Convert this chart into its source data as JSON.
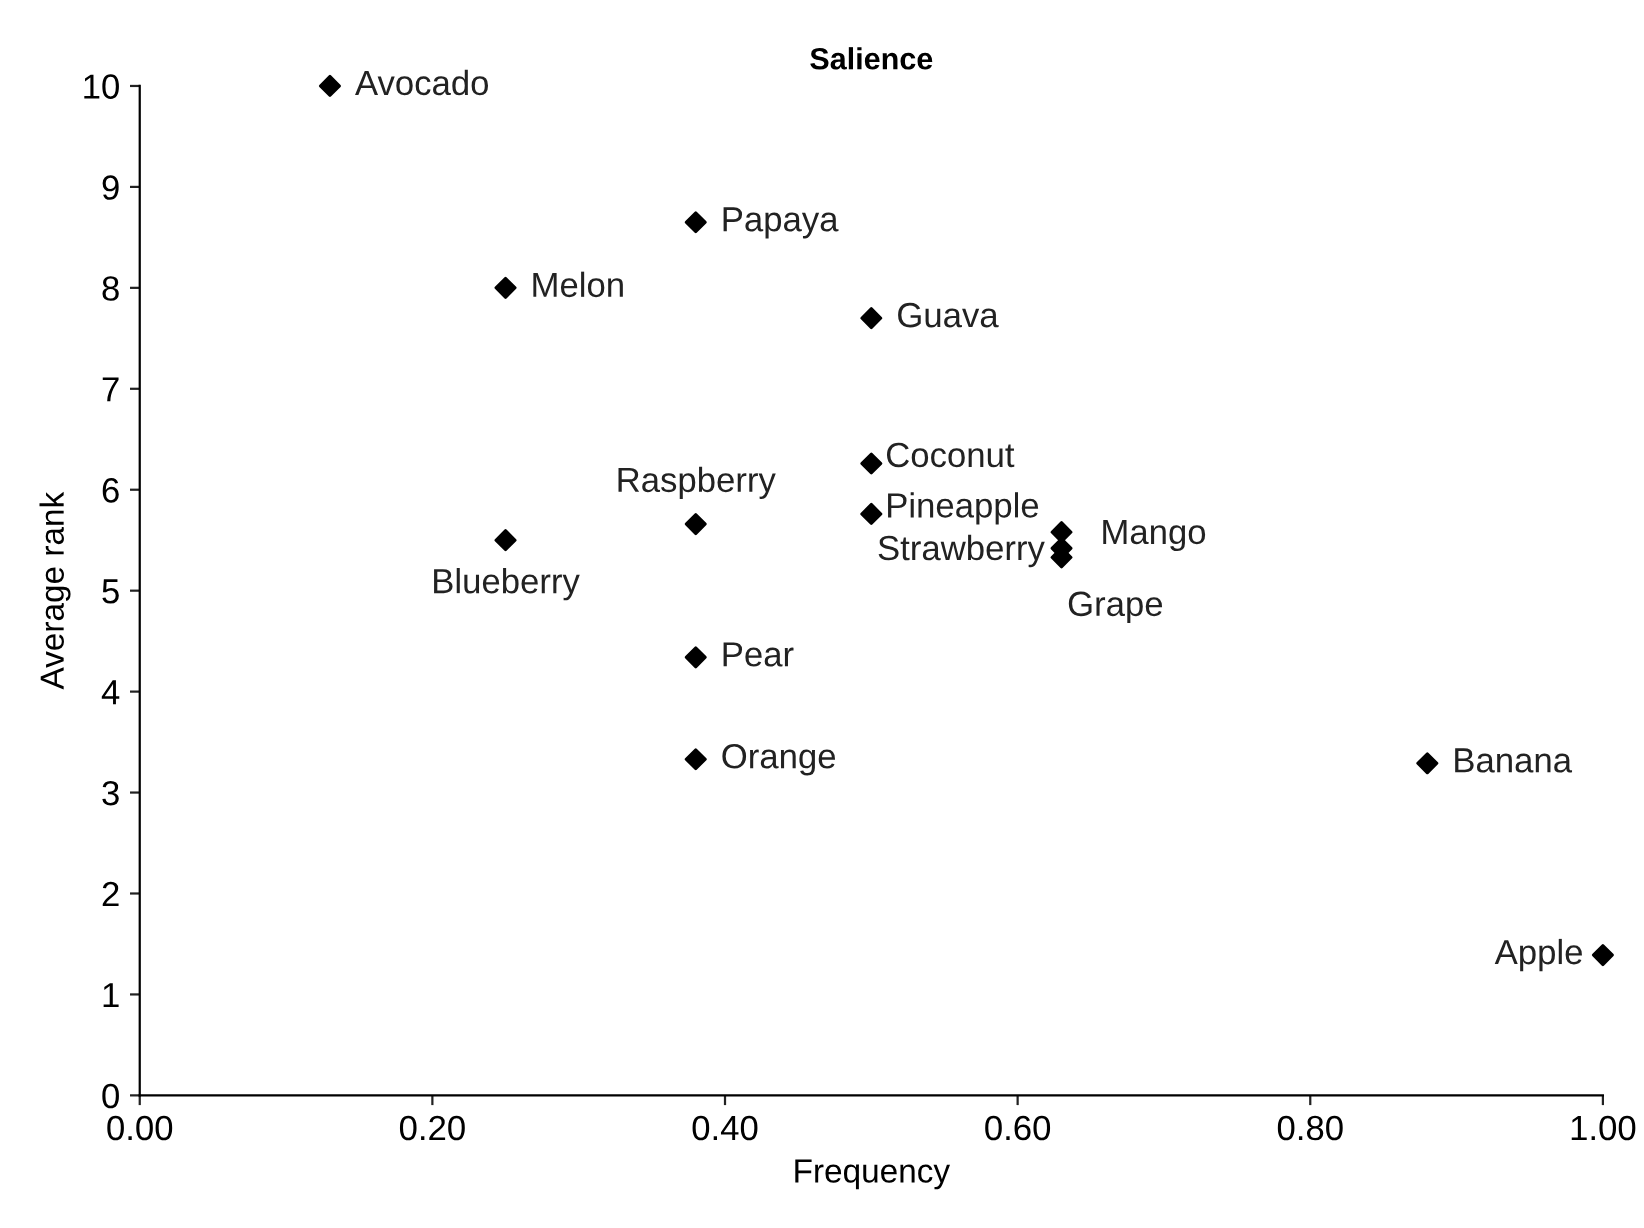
{
  "chart_data": {
    "type": "scatter",
    "title": "Salience",
    "xlabel": "Frequency",
    "ylabel": "Average rank",
    "x": [
      0.13,
      0.38,
      0.25,
      0.5,
      0.5,
      0.38,
      0.5,
      0.25,
      0.63,
      0.63,
      0.63,
      0.38,
      0.38,
      0.88,
      1.0
    ],
    "series": [
      {
        "color": "#000000",
        "values": [
          10,
          8.65,
          8.0,
          7.7,
          6.26,
          5.66,
          5.76,
          5.5,
          5.58,
          5.42,
          5.33,
          4.34,
          3.33,
          3.29,
          1.39
        ]
      }
    ],
    "annotations": [
      {
        "text": "Avocado",
        "x": 0.13,
        "y": 10
      },
      {
        "text": "Papaya",
        "x": 0.38,
        "y": 8.65
      },
      {
        "text": "Melon",
        "x": 0.25,
        "y": 8.0
      },
      {
        "text": "Guava",
        "x": 0.5,
        "y": 7.7
      },
      {
        "text": "Coconut",
        "x": 0.5,
        "y": 6.26
      },
      {
        "text": "Raspberry",
        "x": 0.38,
        "y": 5.66
      },
      {
        "text": "Pineapple",
        "x": 0.5,
        "y": 5.76
      },
      {
        "text": "Blueberry",
        "x": 0.25,
        "y": 5.5
      },
      {
        "text": "Mango",
        "x": 0.63,
        "y": 5.58
      },
      {
        "text": "Strawberry",
        "x": 0.63,
        "y": 5.42
      },
      {
        "text": "Grape",
        "x": 0.63,
        "y": 5.33
      },
      {
        "text": "Pear",
        "x": 0.38,
        "y": 4.34
      },
      {
        "text": "Orange",
        "x": 0.38,
        "y": 3.33
      },
      {
        "text": "Banana",
        "x": 0.88,
        "y": 3.29
      },
      {
        "text": "Apple",
        "x": 1.0,
        "y": 1.39
      }
    ],
    "xlim": [
      0,
      1
    ],
    "xticks": [
      {
        "value": 0,
        "label": "0.00"
      },
      {
        "value": 0.2,
        "label": "0.20"
      },
      {
        "value": 0.4,
        "label": "0.40"
      },
      {
        "value": 0.6,
        "label": "0.60"
      },
      {
        "value": 0.8,
        "label": "0.80"
      },
      {
        "value": 1.0,
        "label": "1.00"
      }
    ],
    "ylim": [
      0,
      10
    ],
    "yticks": [
      0,
      1,
      2,
      3,
      4,
      5,
      6,
      7,
      8,
      9,
      10
    ],
    "marker": "diamond",
    "grid": false,
    "legend": false
  }
}
